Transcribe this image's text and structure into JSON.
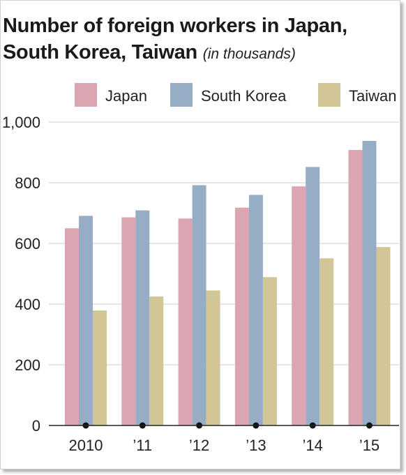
{
  "chart_data": {
    "type": "bar",
    "title": "Number of foreign workers in Japan, South Korea, Taiwan",
    "title_line1": "Number of foreign workers in Japan,",
    "title_line2": "South Korea, Taiwan",
    "subtitle": "(in thousands)",
    "categories": [
      "2010",
      "’11",
      "’12",
      "’13",
      "’14",
      "’15"
    ],
    "series": [
      {
        "name": "Japan",
        "color": "#dba5b1",
        "values": [
          650,
          686,
          682,
          718,
          788,
          908
        ]
      },
      {
        "name": "South Korea",
        "color": "#97adc6",
        "values": [
          691,
          709,
          792,
          760,
          852,
          938
        ]
      },
      {
        "name": "Taiwan",
        "color": "#d2c697",
        "values": [
          379,
          425,
          445,
          489,
          551,
          588
        ]
      }
    ],
    "ylim": [
      0,
      1000
    ],
    "yticks": [
      0,
      200,
      400,
      600,
      800,
      1000
    ],
    "ytick_labels": [
      "0",
      "200",
      "400",
      "600",
      "800",
      "1,000"
    ],
    "grid": true,
    "legend_position": "top",
    "xlabel": "",
    "ylabel": ""
  }
}
